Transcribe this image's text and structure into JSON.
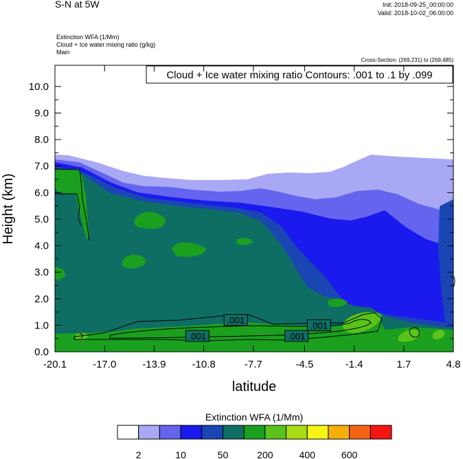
{
  "header": {
    "title": "S-N at 5W",
    "init": "Init: 2018-09-25_00:00:00",
    "valid": "Valid: 2018-10-02_06:00:00"
  },
  "fields": [
    "Extinction WFA   (1/Mm)",
    "Cloud + Ice water mixing ratio   (g/kg)",
    "Main"
  ],
  "cross_section": "Cross-Section: (269,231) to (269,485)",
  "chart_data": {
    "type": "heatmap",
    "contour_title": "Cloud + Ice water mixing ratio Contours: .001 to .1 by .099",
    "xlabel": "latitude",
    "ylabel": "Height (km)",
    "xlim": [
      -20.1,
      4.8
    ],
    "ylim": [
      0.0,
      10.8
    ],
    "x_ticks": [
      "-20.1",
      "-17.0",
      "-13.9",
      "-10.8",
      "-7.7",
      "-4.5",
      "-1.4",
      "1.7",
      "4.8"
    ],
    "y_ticks": [
      "0.0",
      "1.0",
      "2.0",
      "3.0",
      "4.0",
      "5.0",
      "6.0",
      "7.0",
      "8.0",
      "9.0",
      "10.0"
    ],
    "contour_labels": [
      {
        "text": ".001",
        "lat": -8.8,
        "h": 1.2
      },
      {
        "text": ".001",
        "lat": -11.2,
        "h": 0.6
      },
      {
        "text": ".001",
        "lat": -5.0,
        "h": 0.6
      },
      {
        "text": ".001",
        "lat": -3.6,
        "h": 1.0
      }
    ],
    "colorbar": {
      "title": "Extinction WFA  (1/Mm)",
      "colors": [
        "#ffffff",
        "#a8a8f5",
        "#6464ee",
        "#1a1aee",
        "#1a46b4",
        "#0e6e64",
        "#1aa01e",
        "#5ac31a",
        "#a8dc14",
        "#f5f514",
        "#f5af0a",
        "#f56414",
        "#f51414"
      ],
      "labels": [
        "2",
        "10",
        "50",
        "200",
        "400",
        "600"
      ]
    }
  }
}
